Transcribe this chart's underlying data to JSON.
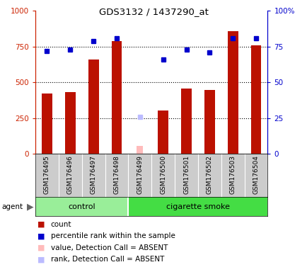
{
  "title": "GDS3132 / 1437290_at",
  "samples": [
    "GSM176495",
    "GSM176496",
    "GSM176497",
    "GSM176498",
    "GSM176499",
    "GSM176500",
    "GSM176501",
    "GSM176502",
    "GSM176503",
    "GSM176504"
  ],
  "count_values": [
    420,
    430,
    660,
    790,
    null,
    300,
    455,
    445,
    860,
    760
  ],
  "count_absent": [
    null,
    null,
    null,
    null,
    55,
    null,
    null,
    null,
    null,
    null
  ],
  "percentile_values": [
    72,
    73,
    79,
    81,
    null,
    66,
    73,
    71,
    81,
    81
  ],
  "percentile_absent": [
    null,
    null,
    null,
    null,
    26,
    null,
    null,
    null,
    null,
    null
  ],
  "ylim_left": [
    0,
    1000
  ],
  "ylim_right": [
    0,
    100
  ],
  "yticks_left": [
    0,
    250,
    500,
    750,
    1000
  ],
  "yticks_right": [
    0,
    25,
    50,
    75,
    100
  ],
  "bar_color": "#bb1100",
  "bar_absent_color": "#ffbbbb",
  "dot_color": "#0000cc",
  "dot_absent_color": "#bbbbff",
  "tick_area_bg": "#cccccc",
  "control_color": "#99ee99",
  "smoke_color": "#44dd44",
  "legend_items": [
    {
      "color": "#bb1100",
      "label": "count",
      "marker": "s"
    },
    {
      "color": "#0000cc",
      "label": "percentile rank within the sample",
      "marker": "s"
    },
    {
      "color": "#ffbbbb",
      "label": "value, Detection Call = ABSENT",
      "marker": "s"
    },
    {
      "color": "#bbbbff",
      "label": "rank, Detection Call = ABSENT",
      "marker": "s"
    }
  ],
  "n_control": 4,
  "n_total": 10
}
